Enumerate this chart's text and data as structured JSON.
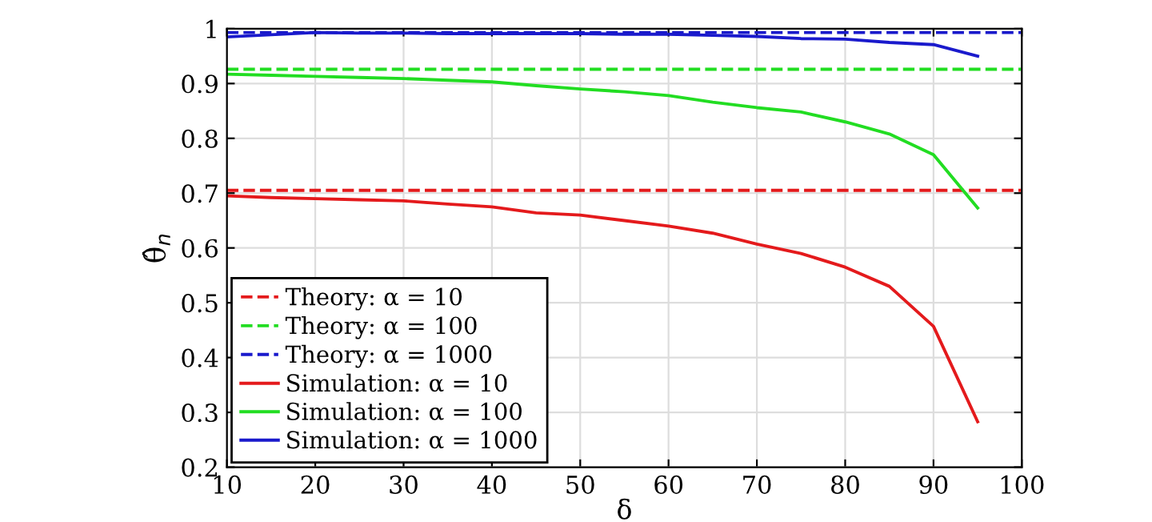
{
  "chart_data": {
    "type": "line",
    "xlabel": "δ",
    "ylabel": "θ̂$_{n}$",
    "xlim": [
      10,
      100
    ],
    "ylim": [
      0.2,
      1
    ],
    "xticks": [
      10,
      20,
      30,
      40,
      50,
      60,
      70,
      80,
      90,
      100
    ],
    "yticks": [
      0.2,
      0.3,
      0.4,
      0.5,
      0.6,
      0.7,
      0.8,
      0.9,
      1
    ],
    "grid": true,
    "legend": "bottom left",
    "series": [
      {
        "name": "Theory: α = 10",
        "color": "#e41a1c",
        "line_style": "dashed",
        "x": [
          10,
          100
        ],
        "values": [
          0.705,
          0.705
        ]
      },
      {
        "name": "Theory: α = 100",
        "color": "#22dd22",
        "line_style": "dashed",
        "x": [
          10,
          100
        ],
        "values": [
          0.926,
          0.926
        ]
      },
      {
        "name": "Theory: α = 1000",
        "color": "#1a1acc",
        "line_style": "dashed",
        "x": [
          10,
          100
        ],
        "values": [
          0.993,
          0.993
        ]
      },
      {
        "name": "Simulation: α = 10",
        "color": "#e41a1c",
        "line_style": "solid",
        "x": [
          10,
          15,
          20,
          25,
          30,
          35,
          40,
          45,
          50,
          55,
          60,
          65,
          70,
          75,
          80,
          85,
          90,
          95
        ],
        "values": [
          0.695,
          0.692,
          0.69,
          0.688,
          0.686,
          0.68,
          0.675,
          0.664,
          0.66,
          0.65,
          0.64,
          0.627,
          0.607,
          0.59,
          0.565,
          0.53,
          0.457,
          0.283
        ]
      },
      {
        "name": "Simulation: α = 100",
        "color": "#22dd22",
        "line_style": "solid",
        "x": [
          10,
          15,
          20,
          25,
          30,
          35,
          40,
          45,
          50,
          55,
          60,
          65,
          70,
          75,
          80,
          85,
          90,
          95
        ],
        "values": [
          0.917,
          0.915,
          0.913,
          0.911,
          0.909,
          0.906,
          0.903,
          0.896,
          0.89,
          0.885,
          0.878,
          0.866,
          0.856,
          0.848,
          0.83,
          0.808,
          0.77,
          0.673
        ]
      },
      {
        "name": "Simulation: α = 1000",
        "color": "#1a1acc",
        "line_style": "solid",
        "x": [
          10,
          15,
          20,
          25,
          30,
          35,
          40,
          45,
          50,
          55,
          60,
          65,
          70,
          75,
          80,
          85,
          90,
          95
        ],
        "values": [
          0.985,
          0.989,
          0.993,
          0.992,
          0.992,
          0.991,
          0.991,
          0.991,
          0.991,
          0.99,
          0.99,
          0.988,
          0.986,
          0.982,
          0.981,
          0.975,
          0.971,
          0.95
        ]
      }
    ]
  }
}
